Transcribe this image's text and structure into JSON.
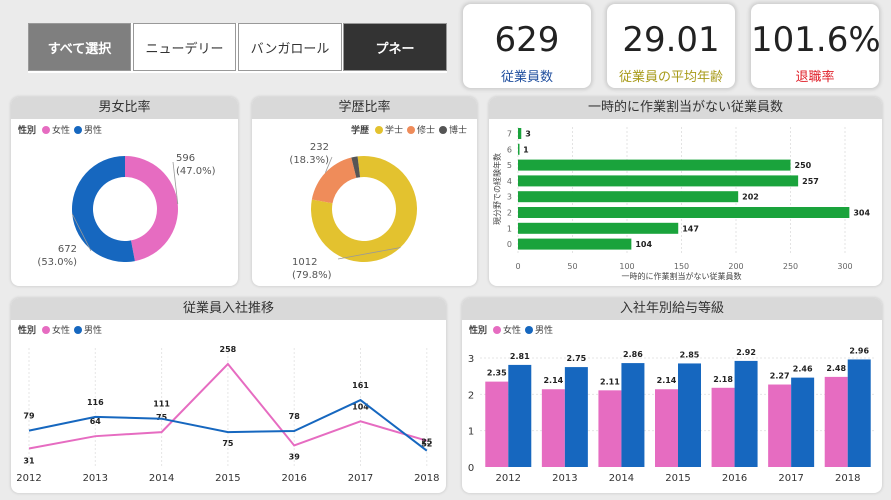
{
  "slicer": {
    "buttons": [
      {
        "label": "すべて選択",
        "state": "select-all"
      },
      {
        "label": "ニューデリー",
        "state": "normal"
      },
      {
        "label": "バンガロール",
        "state": "normal"
      },
      {
        "label": "プネー",
        "state": "active"
      }
    ]
  },
  "kpis": [
    {
      "value": "629",
      "label": "従業員数",
      "color": "#1f4e9e"
    },
    {
      "value": "29.01",
      "label": "従業員の平均年齢",
      "color": "#a89b1a"
    },
    {
      "value": "101.6%",
      "label": "退職率",
      "color": "#e0202a"
    }
  ],
  "colors": {
    "female": "#e66cc1",
    "male": "#1667bf",
    "bachelor": "#e3c22f",
    "master": "#ef8c5a",
    "doctor": "#555555",
    "bar": "#1aa33c"
  },
  "chart_data": [
    {
      "id": "gender",
      "type": "pie",
      "title": "男女比率",
      "legend_title": "性別",
      "legend": [
        "女性",
        "男性"
      ],
      "slices": [
        {
          "name": "女性",
          "value": 596,
          "label": "596",
          "pct_label": "(47.0%)"
        },
        {
          "name": "男性",
          "value": 672,
          "label": "672",
          "pct_label": "(53.0%)"
        }
      ]
    },
    {
      "id": "education",
      "type": "pie",
      "title": "学歴比率",
      "legend_title": "学歴",
      "legend": [
        "学士",
        "修士",
        "博士"
      ],
      "slices": [
        {
          "name": "学士",
          "value": 1012,
          "label": "1012",
          "pct_label": "(79.8%)"
        },
        {
          "name": "修士",
          "value": 232,
          "label": "232",
          "pct_label": "(18.3%)"
        },
        {
          "name": "博士",
          "value": 24,
          "label": "",
          "pct_label": ""
        }
      ]
    },
    {
      "id": "bench",
      "type": "bar",
      "orientation": "horizontal",
      "title": "一時的に作業割当がない従業員数",
      "categories": [
        "7",
        "6",
        "5",
        "4",
        "3",
        "2",
        "1",
        "0"
      ],
      "values": [
        3,
        1,
        250,
        257,
        202,
        304,
        147,
        104
      ],
      "xlabel": "一時的に作業割当がない従業員数",
      "ylabel": "現分野での経験年数",
      "xlim": [
        0,
        300
      ],
      "xticks": [
        "0",
        "50",
        "100",
        "150",
        "200",
        "250",
        "300"
      ]
    },
    {
      "id": "hiring",
      "type": "line",
      "title": "従業員入社推移",
      "legend_title": "性別",
      "legend": [
        "女性",
        "男性"
      ],
      "x": [
        "2012",
        "2013",
        "2014",
        "2015",
        "2016",
        "2017",
        "2018"
      ],
      "series": [
        {
          "name": "女性",
          "values": [
            31,
            64,
            75,
            258,
            39,
            104,
            52
          ]
        },
        {
          "name": "男性",
          "values": [
            79,
            116,
            111,
            75,
            78,
            161,
            25
          ]
        }
      ],
      "ylim": [
        0,
        270
      ]
    },
    {
      "id": "salary",
      "type": "bar",
      "title": "入社年別給与等級",
      "legend_title": "性別",
      "legend": [
        "女性",
        "男性"
      ],
      "categories": [
        "2012",
        "2013",
        "2014",
        "2015",
        "2016",
        "2017",
        "2018"
      ],
      "series": [
        {
          "name": "女性",
          "values": [
            2.35,
            2.14,
            2.11,
            2.14,
            2.18,
            2.27,
            2.48
          ]
        },
        {
          "name": "男性",
          "values": [
            2.81,
            2.75,
            2.86,
            2.85,
            2.92,
            2.46,
            2.96
          ]
        }
      ],
      "ylim": [
        0,
        3
      ],
      "yticks": [
        "0",
        "1",
        "2",
        "3"
      ]
    }
  ]
}
